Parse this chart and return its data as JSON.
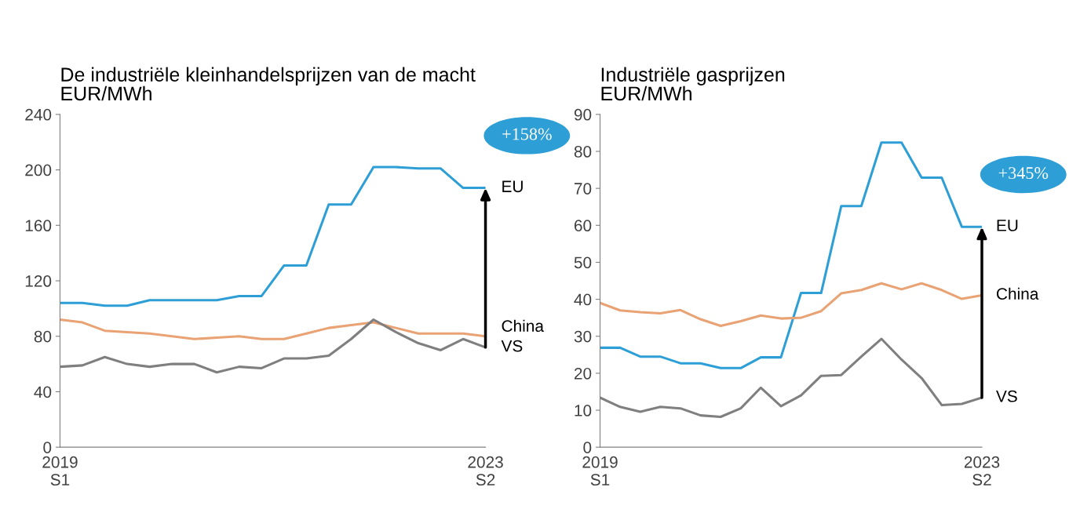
{
  "chart_data": [
    {
      "type": "line",
      "title": "De industriële kleinhandelsprijzen van de macht",
      "ylabel": "EUR/MWh",
      "categories": [
        "2019\nS1",
        null,
        null,
        null,
        null,
        null,
        null,
        null,
        null,
        null,
        null,
        null,
        null,
        null,
        null,
        null,
        null,
        null,
        null,
        "2023\nS2"
      ],
      "series": [
        {
          "name": "EU",
          "color": "#2e9fd6",
          "values": [
            104,
            104,
            102,
            102,
            106,
            106,
            106,
            106,
            109,
            109,
            131,
            131,
            175,
            175,
            202,
            202,
            201,
            201,
            187,
            187
          ]
        },
        {
          "name": "China",
          "color": "#e9a273",
          "values": [
            92,
            90,
            84,
            83,
            82,
            80,
            78,
            79,
            80,
            78,
            78,
            82,
            86,
            88,
            90,
            86,
            82,
            82,
            82,
            80
          ]
        },
        {
          "name": "VS",
          "color": "#7f7f7f",
          "values": [
            58,
            59,
            65,
            60,
            58,
            60,
            60,
            54,
            58,
            57,
            64,
            64,
            66,
            78,
            92,
            83,
            75,
            70,
            78,
            72
          ]
        }
      ],
      "ylim": [
        0,
        240
      ],
      "yticks": [
        0,
        40,
        80,
        120,
        160,
        200,
        240
      ],
      "grid": false,
      "legend": false,
      "annotations": [
        "+158%"
      ]
    },
    {
      "type": "line",
      "title": "Industriële gasprijzen",
      "ylabel": "EUR/MWh",
      "categories": [
        "2019\nS1",
        null,
        null,
        null,
        null,
        null,
        null,
        null,
        null,
        null,
        null,
        null,
        null,
        null,
        null,
        null,
        null,
        null,
        null,
        "2023\nS2"
      ],
      "series": [
        {
          "name": "EU",
          "color": "#2e9fd6",
          "values": [
            26.9,
            26.9,
            24.5,
            24.5,
            22.7,
            22.7,
            21.4,
            21.4,
            24.3,
            24.3,
            41.7,
            41.7,
            65.2,
            65.2,
            82.4,
            82.4,
            72.9,
            72.9,
            59.6,
            59.6
          ]
        },
        {
          "name": "China",
          "color": "#e9a273",
          "values": [
            39.0,
            37.0,
            36.5,
            36.2,
            37.1,
            34.6,
            32.8,
            34.1,
            35.6,
            34.8,
            35.0,
            36.8,
            41.6,
            42.5,
            44.3,
            42.7,
            44.3,
            42.5,
            40.1,
            41.1
          ]
        },
        {
          "name": "VS",
          "color": "#7f7f7f",
          "values": [
            13.4,
            10.9,
            9.6,
            10.9,
            10.5,
            8.6,
            8.2,
            10.5,
            16.1,
            11.1,
            14.0,
            19.3,
            19.5,
            24.5,
            29.3,
            23.7,
            18.7,
            11.4,
            11.7,
            13.4
          ]
        }
      ],
      "ylim": [
        0,
        90
      ],
      "yticks": [
        0,
        10,
        20,
        30,
        40,
        50,
        60,
        70,
        80,
        90
      ],
      "grid": false,
      "legend": false,
      "annotations": [
        "+345%"
      ]
    }
  ]
}
